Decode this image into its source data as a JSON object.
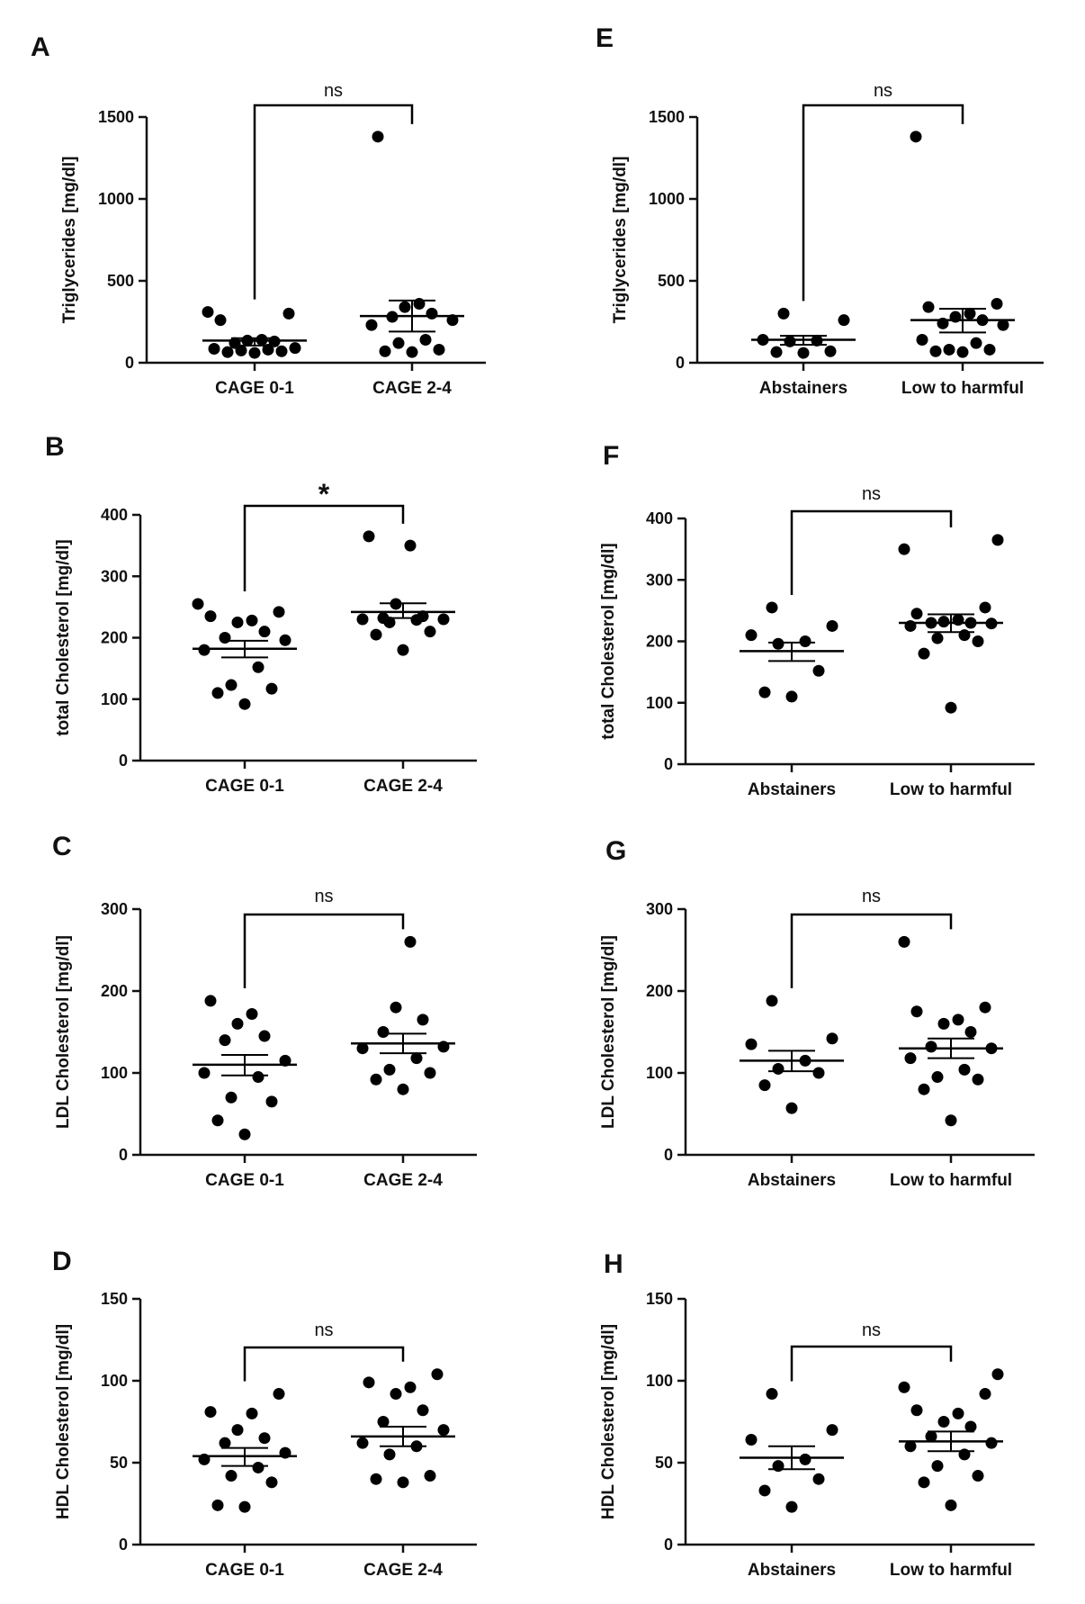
{
  "chart_data": [
    {
      "panel": "A",
      "type": "scatter",
      "ylabel": "Triglycerides [mg/dl]",
      "ylim": [
        0,
        1500
      ],
      "yticks": [
        0,
        500,
        1000,
        1500
      ],
      "categories": [
        "CAGE 0-1",
        "CAGE 2-4"
      ],
      "points": [
        [
          60,
          65,
          70,
          75,
          80,
          85,
          90,
          120,
          130,
          135,
          140,
          260,
          300,
          310
        ],
        [
          65,
          70,
          80,
          120,
          140,
          230,
          260,
          280,
          300,
          340,
          360,
          1380
        ]
      ],
      "mean": [
        135,
        285
      ],
      "err_low": [
        105,
        190
      ],
      "err_high": [
        150,
        380
      ],
      "significance": "ns"
    },
    {
      "panel": "B",
      "type": "scatter",
      "ylabel": "total Cholesterol [mg/dl]",
      "ylim": [
        0,
        400
      ],
      "yticks": [
        0,
        100,
        200,
        300,
        400
      ],
      "categories": [
        "CAGE 0-1",
        "CAGE 2-4"
      ],
      "points": [
        [
          92,
          110,
          117,
          123,
          152,
          180,
          196,
          200,
          210,
          225,
          228,
          235,
          242,
          255
        ],
        [
          180,
          205,
          210,
          225,
          229,
          230,
          230,
          232,
          235,
          255,
          350,
          365
        ]
      ],
      "mean": [
        182,
        242
      ],
      "err_low": [
        168,
        232
      ],
      "err_high": [
        195,
        256
      ],
      "significance": "*"
    },
    {
      "panel": "C",
      "type": "scatter",
      "ylabel": "LDL Cholesterol [mg/dl]",
      "ylim": [
        0,
        300
      ],
      "yticks": [
        0,
        100,
        200,
        300
      ],
      "categories": [
        "CAGE 0-1",
        "CAGE 2-4"
      ],
      "points": [
        [
          25,
          42,
          65,
          70,
          95,
          100,
          115,
          140,
          145,
          160,
          172,
          188
        ],
        [
          80,
          92,
          100,
          104,
          118,
          130,
          132,
          150,
          165,
          180,
          260
        ]
      ],
      "mean": [
        110,
        136
      ],
      "err_low": [
        97,
        124
      ],
      "err_high": [
        122,
        148
      ],
      "significance": "ns"
    },
    {
      "panel": "D",
      "type": "scatter",
      "ylabel": "HDL Cholesterol [mg/dl]",
      "ylim": [
        0,
        150
      ],
      "yticks": [
        0,
        50,
        100,
        150
      ],
      "categories": [
        "CAGE 0-1",
        "CAGE 2-4"
      ],
      "points": [
        [
          23,
          24,
          38,
          42,
          47,
          52,
          56,
          62,
          65,
          70,
          80,
          81,
          92
        ],
        [
          38,
          40,
          42,
          55,
          60,
          62,
          70,
          75,
          82,
          92,
          96,
          99,
          104
        ]
      ],
      "mean": [
        54,
        66
      ],
      "err_low": [
        48,
        60
      ],
      "err_high": [
        59,
        72
      ],
      "significance": "ns"
    },
    {
      "panel": "E",
      "type": "scatter",
      "ylabel": "Triglycerides [mg/dl]",
      "ylim": [
        0,
        1500
      ],
      "yticks": [
        0,
        500,
        1000,
        1500
      ],
      "categories": [
        "Abstainers",
        "Low to harmful"
      ],
      "points": [
        [
          60,
          65,
          70,
          130,
          135,
          140,
          260,
          300
        ],
        [
          65,
          70,
          80,
          80,
          120,
          140,
          230,
          240,
          260,
          280,
          300,
          340,
          360,
          1380
        ]
      ],
      "mean": [
        140,
        260
      ],
      "err_low": [
        110,
        185
      ],
      "err_high": [
        165,
        330
      ],
      "significance": "ns"
    },
    {
      "panel": "F",
      "type": "scatter",
      "ylabel": "total Cholesterol [mg/dl]",
      "ylim": [
        0,
        400
      ],
      "yticks": [
        0,
        100,
        200,
        300,
        400
      ],
      "categories": [
        "Abstainers",
        "Low to harmful"
      ],
      "points": [
        [
          110,
          117,
          152,
          196,
          200,
          210,
          225,
          255
        ],
        [
          92,
          180,
          200,
          205,
          210,
          225,
          229,
          230,
          230,
          232,
          235,
          245,
          255,
          350,
          365
        ]
      ],
      "mean": [
        184,
        230
      ],
      "err_low": [
        168,
        215
      ],
      "err_high": [
        198,
        244
      ],
      "significance": "ns"
    },
    {
      "panel": "G",
      "type": "scatter",
      "ylabel": "LDL Cholesterol [mg/dl]",
      "ylim": [
        0,
        300
      ],
      "yticks": [
        0,
        100,
        200,
        300
      ],
      "categories": [
        "Abstainers",
        "Low to harmful"
      ],
      "points": [
        [
          57,
          85,
          100,
          105,
          115,
          135,
          142,
          188
        ],
        [
          42,
          80,
          92,
          95,
          104,
          118,
          130,
          132,
          150,
          160,
          165,
          175,
          180,
          260
        ]
      ],
      "mean": [
        115,
        130
      ],
      "err_low": [
        102,
        118
      ],
      "err_high": [
        127,
        142
      ],
      "significance": "ns"
    },
    {
      "panel": "H",
      "type": "scatter",
      "ylabel": "HDL Cholesterol [mg/dl]",
      "ylim": [
        0,
        150
      ],
      "yticks": [
        0,
        50,
        100,
        150
      ],
      "categories": [
        "Abstainers",
        "Low to harmful"
      ],
      "points": [
        [
          23,
          33,
          40,
          48,
          52,
          64,
          70,
          92
        ],
        [
          24,
          38,
          42,
          48,
          55,
          60,
          62,
          66,
          72,
          75,
          80,
          82,
          92,
          96,
          104
        ]
      ],
      "mean": [
        53,
        63
      ],
      "err_low": [
        46,
        57
      ],
      "err_high": [
        60,
        69
      ],
      "significance": "ns"
    }
  ]
}
